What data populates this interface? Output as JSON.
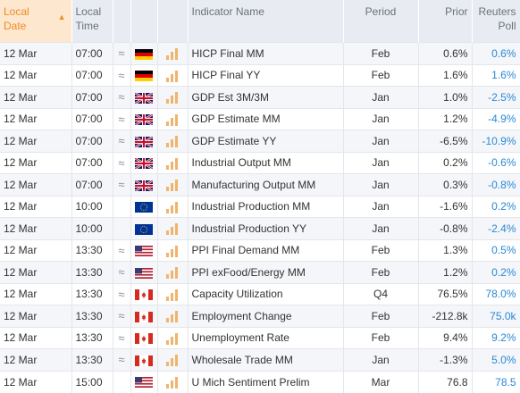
{
  "header": {
    "local_date": [
      "Local",
      "Date"
    ],
    "local_time": [
      "Local",
      "Time"
    ],
    "indicator": "Indicator Name",
    "period": "Period",
    "prior": "Prior",
    "poll": [
      "Reuters",
      "Poll"
    ],
    "sort_icon": "triangle-up-icon"
  },
  "colors": {
    "accent": "#ef8c22",
    "poll": "#2a89d6",
    "importance_bars": "#f0b46c"
  },
  "rows": [
    {
      "date": "12 Mar",
      "time": "07:00",
      "volatile": "≈",
      "country": "DE",
      "indicator": "HICP Final MM",
      "period": "Feb",
      "prior": "0.6%",
      "poll": "0.6%"
    },
    {
      "date": "12 Mar",
      "time": "07:00",
      "volatile": "≈",
      "country": "DE",
      "indicator": "HICP Final YY",
      "period": "Feb",
      "prior": "1.6%",
      "poll": "1.6%"
    },
    {
      "date": "12 Mar",
      "time": "07:00",
      "volatile": "≈",
      "country": "GB",
      "indicator": "GDP Est 3M/3M",
      "period": "Jan",
      "prior": "1.0%",
      "poll": "-2.5%"
    },
    {
      "date": "12 Mar",
      "time": "07:00",
      "volatile": "≈",
      "country": "GB",
      "indicator": "GDP Estimate MM",
      "period": "Jan",
      "prior": "1.2%",
      "poll": "-4.9%"
    },
    {
      "date": "12 Mar",
      "time": "07:00",
      "volatile": "≈",
      "country": "GB",
      "indicator": "GDP Estimate YY",
      "period": "Jan",
      "prior": "-6.5%",
      "poll": "-10.9%"
    },
    {
      "date": "12 Mar",
      "time": "07:00",
      "volatile": "≈",
      "country": "GB",
      "indicator": "Industrial Output MM",
      "period": "Jan",
      "prior": "0.2%",
      "poll": "-0.6%"
    },
    {
      "date": "12 Mar",
      "time": "07:00",
      "volatile": "≈",
      "country": "GB",
      "indicator": "Manufacturing Output MM",
      "period": "Jan",
      "prior": "0.3%",
      "poll": "-0.8%"
    },
    {
      "date": "12 Mar",
      "time": "10:00",
      "volatile": "",
      "country": "EU",
      "indicator": "Industrial Production MM",
      "period": "Jan",
      "prior": "-1.6%",
      "poll": "0.2%"
    },
    {
      "date": "12 Mar",
      "time": "10:00",
      "volatile": "",
      "country": "EU",
      "indicator": "Industrial Production YY",
      "period": "Jan",
      "prior": "-0.8%",
      "poll": "-2.4%"
    },
    {
      "date": "12 Mar",
      "time": "13:30",
      "volatile": "≈",
      "country": "US",
      "indicator": "PPI Final Demand MM",
      "period": "Feb",
      "prior": "1.3%",
      "poll": "0.5%"
    },
    {
      "date": "12 Mar",
      "time": "13:30",
      "volatile": "≈",
      "country": "US",
      "indicator": "PPI exFood/Energy MM",
      "period": "Feb",
      "prior": "1.2%",
      "poll": "0.2%"
    },
    {
      "date": "12 Mar",
      "time": "13:30",
      "volatile": "≈",
      "country": "CA",
      "indicator": "Capacity Utilization",
      "period": "Q4",
      "prior": "76.5%",
      "poll": "78.0%"
    },
    {
      "date": "12 Mar",
      "time": "13:30",
      "volatile": "≈",
      "country": "CA",
      "indicator": "Employment Change",
      "period": "Feb",
      "prior": "-212.8k",
      "poll": "75.0k"
    },
    {
      "date": "12 Mar",
      "time": "13:30",
      "volatile": "≈",
      "country": "CA",
      "indicator": "Unemployment Rate",
      "period": "Feb",
      "prior": "9.4%",
      "poll": "9.2%"
    },
    {
      "date": "12 Mar",
      "time": "13:30",
      "volatile": "≈",
      "country": "CA",
      "indicator": "Wholesale Trade MM",
      "period": "Jan",
      "prior": "-1.3%",
      "poll": "5.0%"
    },
    {
      "date": "12 Mar",
      "time": "15:00",
      "volatile": "",
      "country": "US",
      "indicator": "U Mich Sentiment Prelim",
      "period": "Mar",
      "prior": "76.8",
      "poll": "78.5"
    }
  ]
}
